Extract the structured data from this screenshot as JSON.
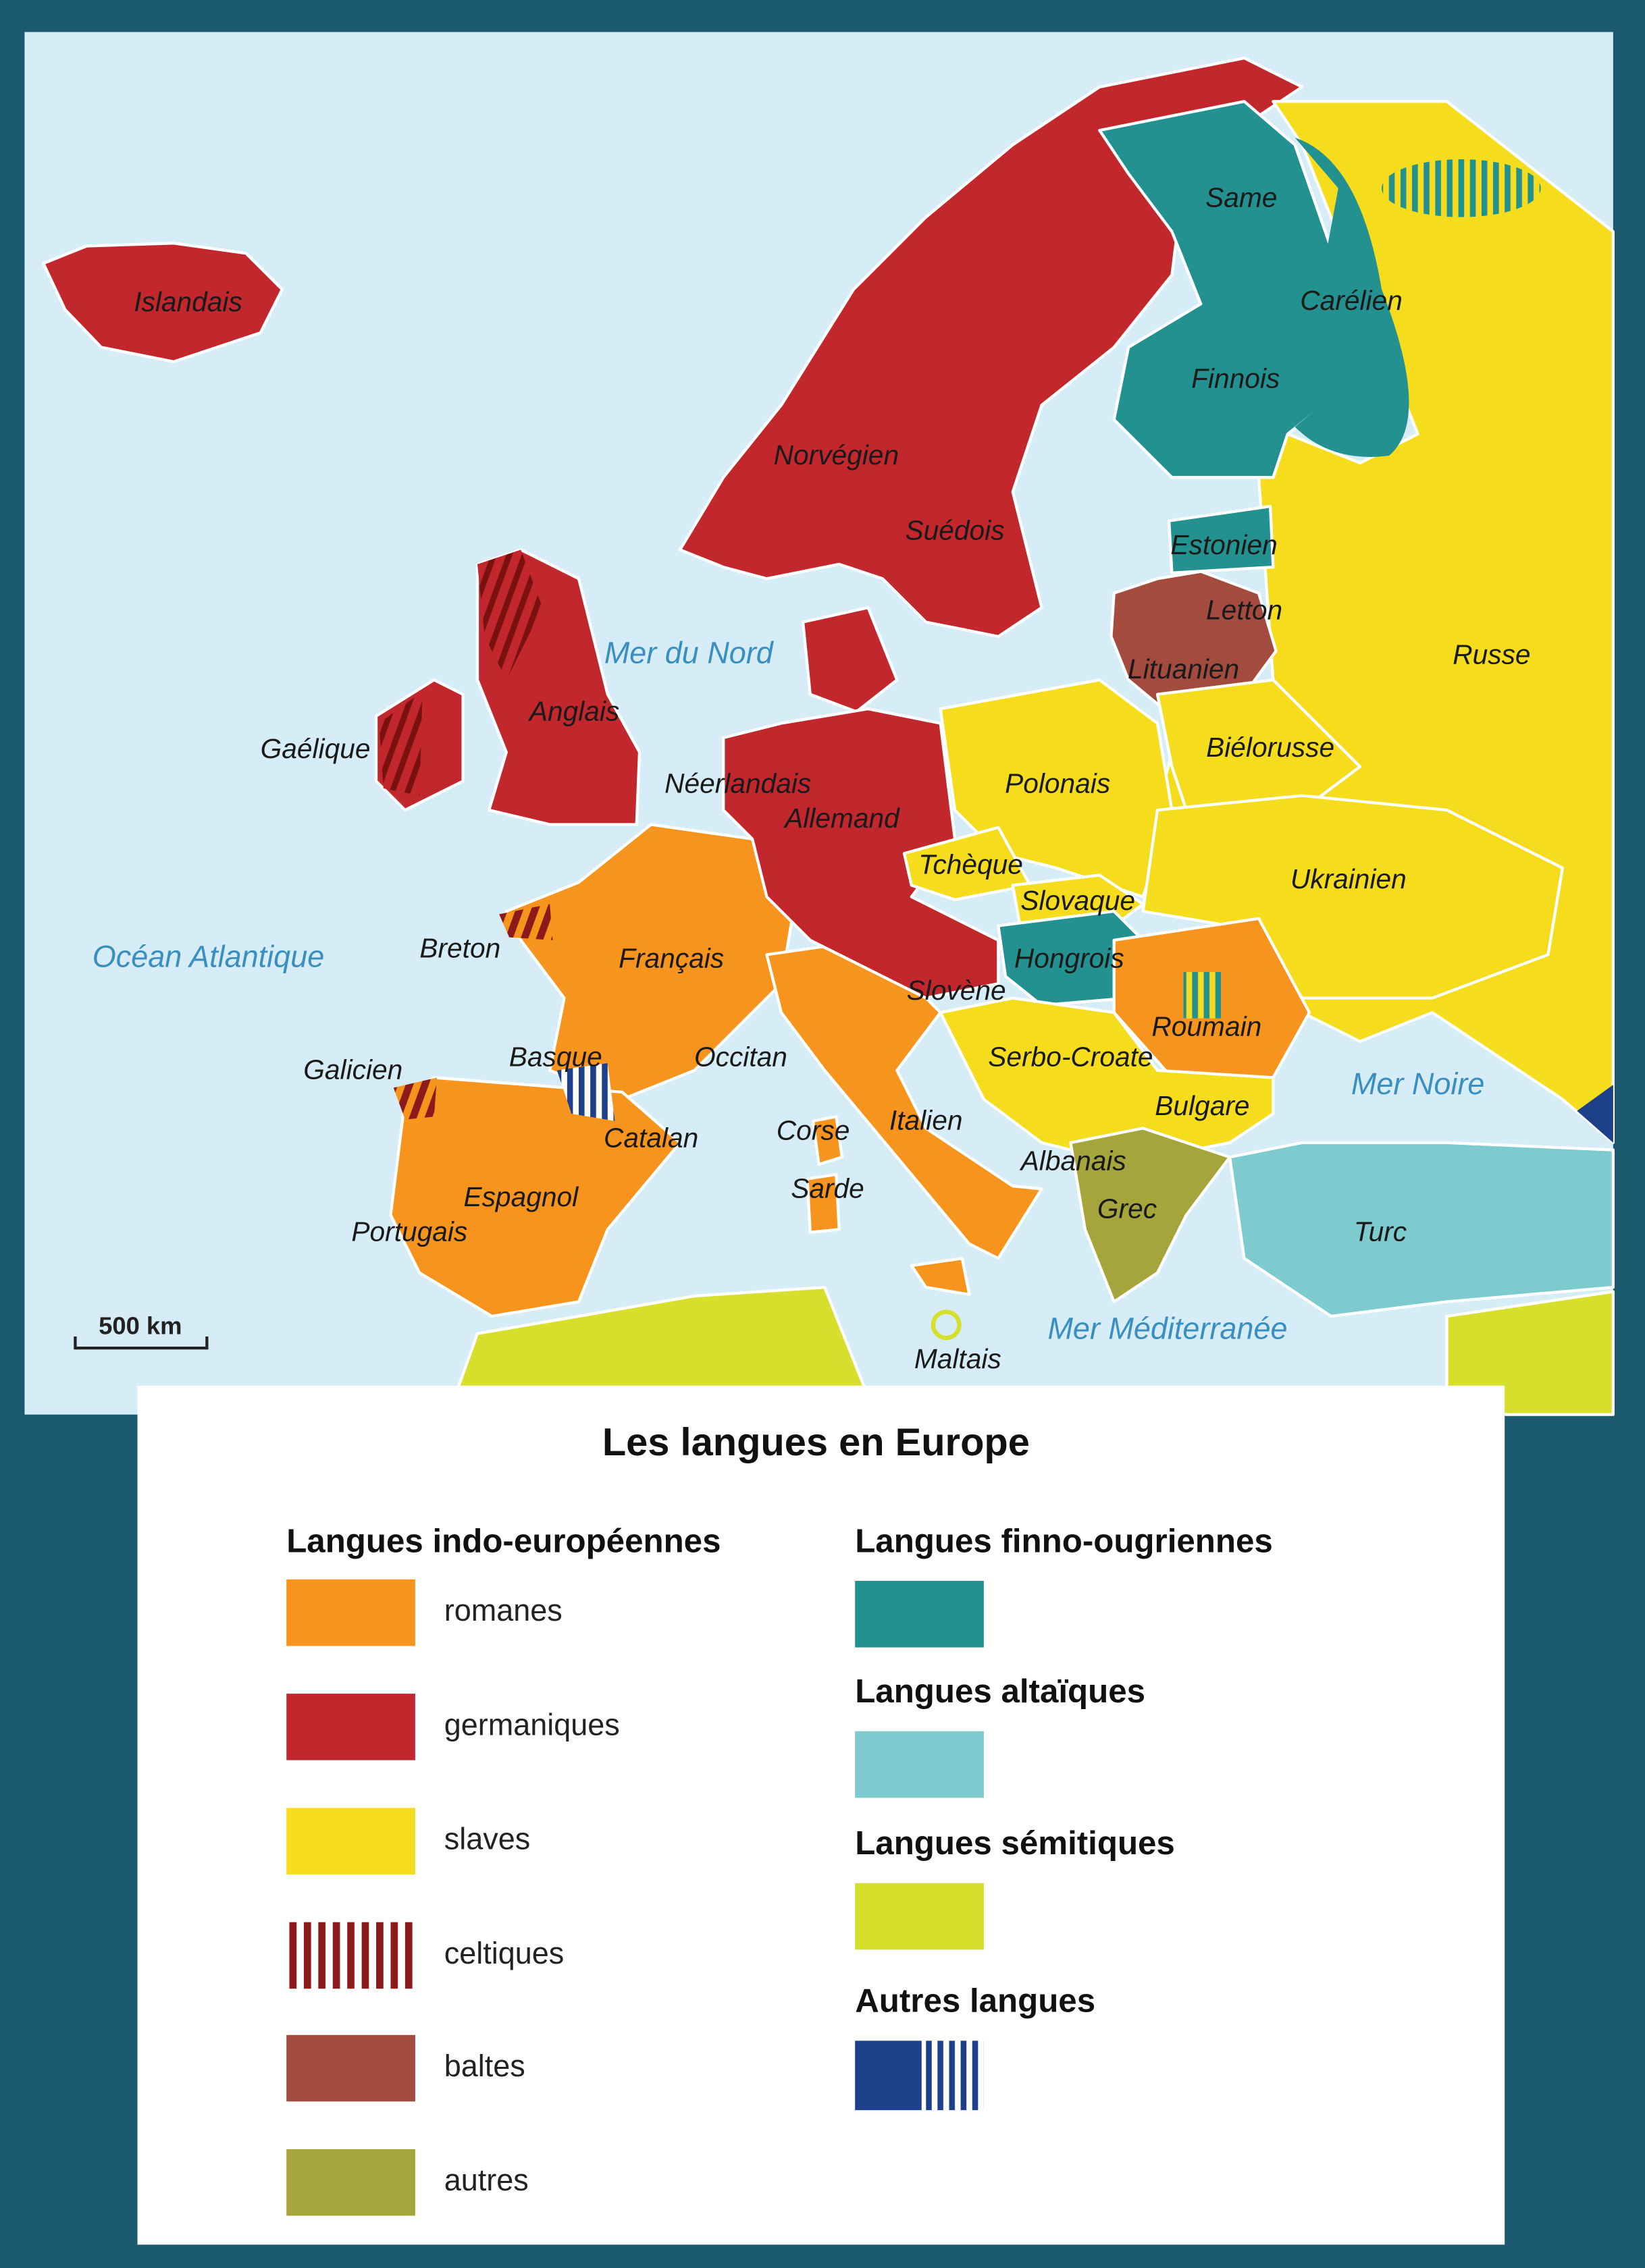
{
  "map": {
    "labels": [
      "Islandais",
      "Norvégien",
      "Suédois",
      "Same",
      "Carélien",
      "Finnois",
      "Estonien",
      "Letton",
      "Lituanien",
      "Russe",
      "Anglais",
      "Gaélique",
      "Néerlandais",
      "Allemand",
      "Polonais",
      "Biélorusse",
      "Tchèque",
      "Slovaque",
      "Ukrainien",
      "Breton",
      "Français",
      "Hongrois",
      "Slovène",
      "Roumain",
      "Basque",
      "Occitan",
      "Serbo-Croate",
      "Galicien",
      "Bulgare",
      "Italien",
      "Corse",
      "Catalan",
      "Albanais",
      "Sarde",
      "Espagnol",
      "Grec",
      "Portugais",
      "Turc",
      "Maltais"
    ],
    "seas": [
      "Mer du Nord",
      "Océan Atlantique",
      "Mer Noire",
      "Mer Méditerranée"
    ],
    "scale": "500 km"
  },
  "legend": {
    "title": "Les langues en Europe",
    "groups": [
      {
        "heading": "Langues indo-européennes",
        "items": [
          "romanes",
          "germaniques",
          "slaves",
          "celtiques",
          "baltes",
          "autres"
        ]
      },
      {
        "heading": "Langues finno-ougriennes"
      },
      {
        "heading": "Langues altaïques"
      },
      {
        "heading": "Langues sémitiques"
      },
      {
        "heading": "Autres langues"
      }
    ]
  }
}
